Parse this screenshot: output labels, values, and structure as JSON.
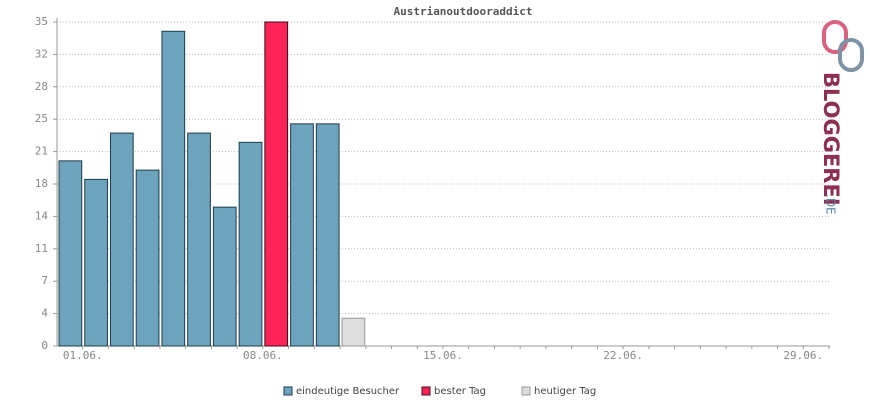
{
  "chart_data": {
    "type": "bar",
    "title": "Austrianoutdooraddict",
    "logo": "BLOGGEREI",
    "logo_domain": ".DE",
    "categories": [
      "01.06.",
      null,
      null,
      null,
      null,
      null,
      null,
      "08.06.",
      null,
      null,
      null,
      null,
      null,
      null,
      "15.06.",
      null,
      null,
      null,
      null,
      null,
      null,
      "22.06.",
      null,
      null,
      null,
      null,
      null,
      null,
      "29.06.",
      null
    ],
    "series": [
      {
        "name": "eindeutige Besucher",
        "color": "#6ea3bd",
        "values": [
          20,
          18,
          23,
          19,
          34,
          23,
          15,
          22,
          null,
          24,
          24,
          null,
          null,
          null,
          null,
          null,
          null,
          null,
          null,
          null,
          null,
          null,
          null,
          null,
          null,
          null,
          null,
          null,
          null,
          null
        ]
      },
      {
        "name": "bester Tag",
        "color": "#ff2358",
        "values": [
          null,
          null,
          null,
          null,
          null,
          null,
          null,
          null,
          35,
          null,
          null,
          null,
          null,
          null,
          null,
          null,
          null,
          null,
          null,
          null,
          null,
          null,
          null,
          null,
          null,
          null,
          null,
          null,
          null,
          null
        ]
      },
      {
        "name": "heutiger Tag",
        "color": "#dddddd",
        "values": [
          null,
          null,
          null,
          null,
          null,
          null,
          null,
          null,
          null,
          null,
          null,
          3,
          null,
          null,
          null,
          null,
          null,
          null,
          null,
          null,
          null,
          null,
          null,
          null,
          null,
          null,
          null,
          null,
          null,
          null
        ]
      }
    ],
    "ylim": [
      0,
      35
    ],
    "yticks": [
      0,
      {
        "value": 3.5,
        "label": "4"
      },
      7,
      {
        "value": 10.5,
        "label": "11"
      },
      14,
      {
        "value": 17.5,
        "label": "18"
      },
      21,
      {
        "value": 24.5,
        "label": "25"
      },
      28,
      {
        "value": 31.5,
        "label": "32"
      },
      35
    ],
    "grid": true
  }
}
